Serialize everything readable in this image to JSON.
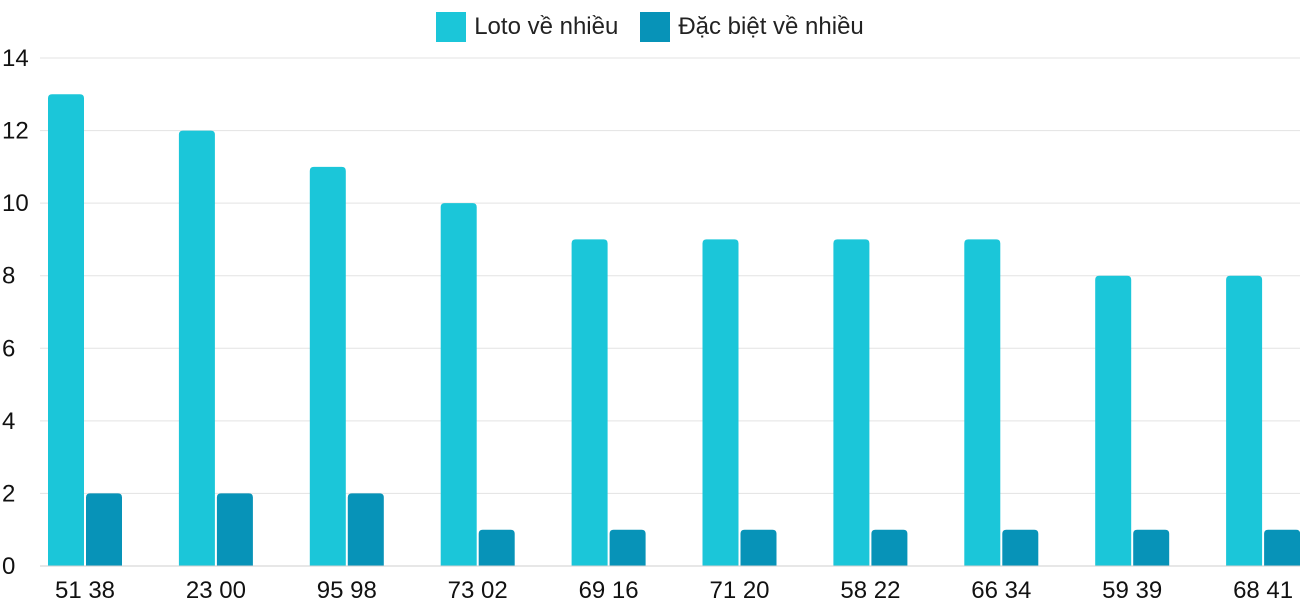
{
  "chart_data": {
    "type": "bar",
    "categories": [
      "51 38",
      "23 00",
      "95 98",
      "73 02",
      "69 16",
      "71 20",
      "58 22",
      "66 34",
      "59 39",
      "68 41"
    ],
    "series": [
      {
        "name": "Loto về nhiều",
        "color": "#1BC6D9",
        "values": [
          13,
          12,
          11,
          10,
          9,
          9,
          9,
          9,
          8,
          8
        ]
      },
      {
        "name": "Đặc biệt về nhiều",
        "color": "#0793B8",
        "values": [
          2,
          2,
          2,
          1,
          1,
          1,
          1,
          1,
          1,
          1
        ]
      }
    ],
    "ylim": [
      0,
      14
    ],
    "yticks": [
      0,
      2,
      4,
      6,
      8,
      10,
      12,
      14
    ],
    "grid": true,
    "legend_position": "top-center"
  }
}
